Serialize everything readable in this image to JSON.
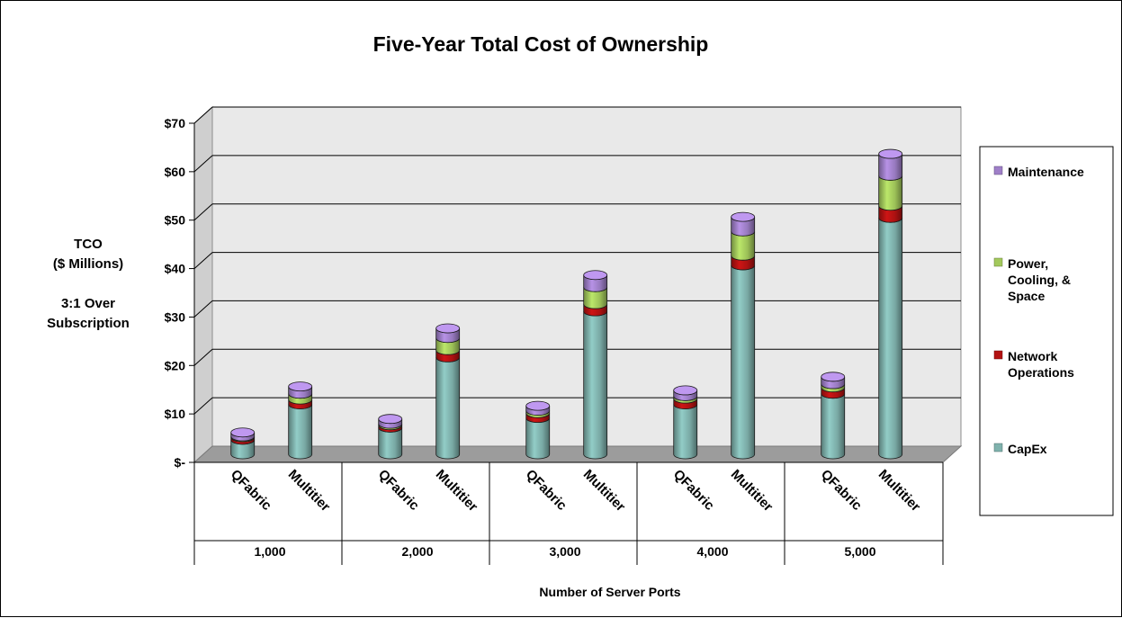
{
  "chart_data": {
    "type": "bar",
    "stacked": true,
    "style": "3d-cylinder",
    "title": "Five-Year Total Cost of Ownership",
    "ylabel_lines": [
      "TCO",
      "($ Millions)",
      "",
      "3:1 Over",
      "Subscription"
    ],
    "xlabel": "Number of Server Ports",
    "ylim": [
      0,
      70
    ],
    "yticks": [
      0,
      10,
      20,
      30,
      40,
      50,
      60,
      70
    ],
    "ytick_labels": [
      "$-",
      "$10",
      "$20",
      "$30",
      "$40",
      "$50",
      "$60",
      "$70"
    ],
    "groups": [
      "1,000",
      "2,000",
      "3,000",
      "4,000",
      "5,000"
    ],
    "categories": [
      "QFabric",
      "Multitier"
    ],
    "series": [
      {
        "name": "CapEx",
        "color": "#7fb2ad",
        "values": [
          [
            3.0,
            10.3
          ],
          [
            5.5,
            20.0
          ],
          [
            7.5,
            29.5
          ],
          [
            10.3,
            39.0
          ],
          [
            12.5,
            48.8
          ]
        ]
      },
      {
        "name": "Network Operations",
        "color": "#b31212",
        "values": [
          [
            0.5,
            1.0
          ],
          [
            0.5,
            1.5
          ],
          [
            1.0,
            1.5
          ],
          [
            1.2,
            2.0
          ],
          [
            1.3,
            2.5
          ]
        ]
      },
      {
        "name": "Power, Cooling, & Space",
        "color": "#a3c95c",
        "values": [
          [
            0.2,
            1.2
          ],
          [
            0.3,
            2.5
          ],
          [
            0.5,
            3.5
          ],
          [
            0.5,
            5.0
          ],
          [
            0.7,
            6.2
          ]
        ]
      },
      {
        "name": "Maintenance",
        "color": "#9f7fc8",
        "values": [
          [
            0.8,
            1.5
          ],
          [
            1.0,
            2.0
          ],
          [
            1.0,
            2.5
          ],
          [
            1.2,
            3.0
          ],
          [
            1.5,
            4.5
          ]
        ]
      }
    ],
    "legend_position": "right",
    "grid": true
  }
}
